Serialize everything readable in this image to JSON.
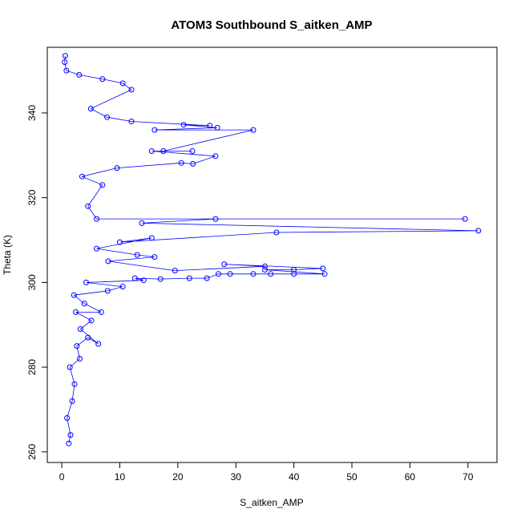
{
  "chart_data": {
    "type": "scatter",
    "title": "ATOM3 Southbound S_aitken_AMP",
    "xlabel": "S_aitken_AMP",
    "ylabel": "Theta (K)",
    "xlim": [
      -2.5,
      75
    ],
    "ylim": [
      257.5,
      355.5
    ],
    "x_ticks": [
      0,
      10,
      20,
      30,
      40,
      50,
      60,
      70
    ],
    "y_ticks": [
      260,
      280,
      300,
      320,
      340
    ],
    "grid": false,
    "legend": "none",
    "style": {
      "color": "#0000ff",
      "marker": "open-circle",
      "connected": true
    },
    "series": [
      {
        "values": [
          [
            1.2,
            262
          ],
          [
            1.5,
            264
          ],
          [
            0.9,
            268
          ],
          [
            1.8,
            272
          ],
          [
            2.2,
            276
          ],
          [
            1.4,
            280
          ],
          [
            3.1,
            282
          ],
          [
            2.6,
            285
          ],
          [
            4.5,
            287
          ],
          [
            6.3,
            285.5
          ],
          [
            3.2,
            289
          ],
          [
            5.1,
            291
          ],
          [
            2.4,
            293
          ],
          [
            6.8,
            293
          ],
          [
            3.9,
            295
          ],
          [
            2.1,
            297
          ],
          [
            7.9,
            298
          ],
          [
            10.5,
            299
          ],
          [
            4.2,
            300
          ],
          [
            14.1,
            300.5
          ],
          [
            12.6,
            301
          ],
          [
            17.0,
            300.8
          ],
          [
            22.0,
            301
          ],
          [
            25.0,
            301
          ],
          [
            27.0,
            302
          ],
          [
            29.0,
            302
          ],
          [
            33.0,
            302
          ],
          [
            36.0,
            302
          ],
          [
            40.0,
            302
          ],
          [
            45.3,
            302
          ],
          [
            35.0,
            303
          ],
          [
            40.0,
            303
          ],
          [
            45.0,
            303.3
          ],
          [
            28.0,
            304.3
          ],
          [
            35.0,
            303.8
          ],
          [
            19.5,
            302.8
          ],
          [
            8.0,
            305
          ],
          [
            16.0,
            306
          ],
          [
            13.0,
            306.5
          ],
          [
            6.0,
            308
          ],
          [
            15.5,
            310.5
          ],
          [
            10.0,
            309.5
          ],
          [
            37.0,
            311.8
          ],
          [
            71.8,
            312.2
          ],
          [
            13.8,
            314
          ],
          [
            26.5,
            315
          ],
          [
            69.5,
            315
          ],
          [
            6.0,
            315
          ],
          [
            4.5,
            318
          ],
          [
            7.0,
            323
          ],
          [
            3.5,
            325
          ],
          [
            9.5,
            327
          ],
          [
            20.6,
            328.2
          ],
          [
            22.6,
            328
          ],
          [
            26.5,
            329.8
          ],
          [
            15.5,
            331
          ],
          [
            22.5,
            331
          ],
          [
            17.5,
            331
          ],
          [
            33.0,
            336
          ],
          [
            16.0,
            336
          ],
          [
            26.8,
            336.5
          ],
          [
            21.0,
            337.2
          ],
          [
            25.5,
            337
          ],
          [
            12.0,
            338
          ],
          [
            7.8,
            339
          ],
          [
            5.0,
            341
          ],
          [
            12.0,
            345.5
          ],
          [
            10.5,
            347
          ],
          [
            7.0,
            348
          ],
          [
            3.0,
            349
          ],
          [
            0.8,
            350
          ],
          [
            0.5,
            352
          ],
          [
            0.6,
            353.5
          ]
        ]
      }
    ]
  }
}
